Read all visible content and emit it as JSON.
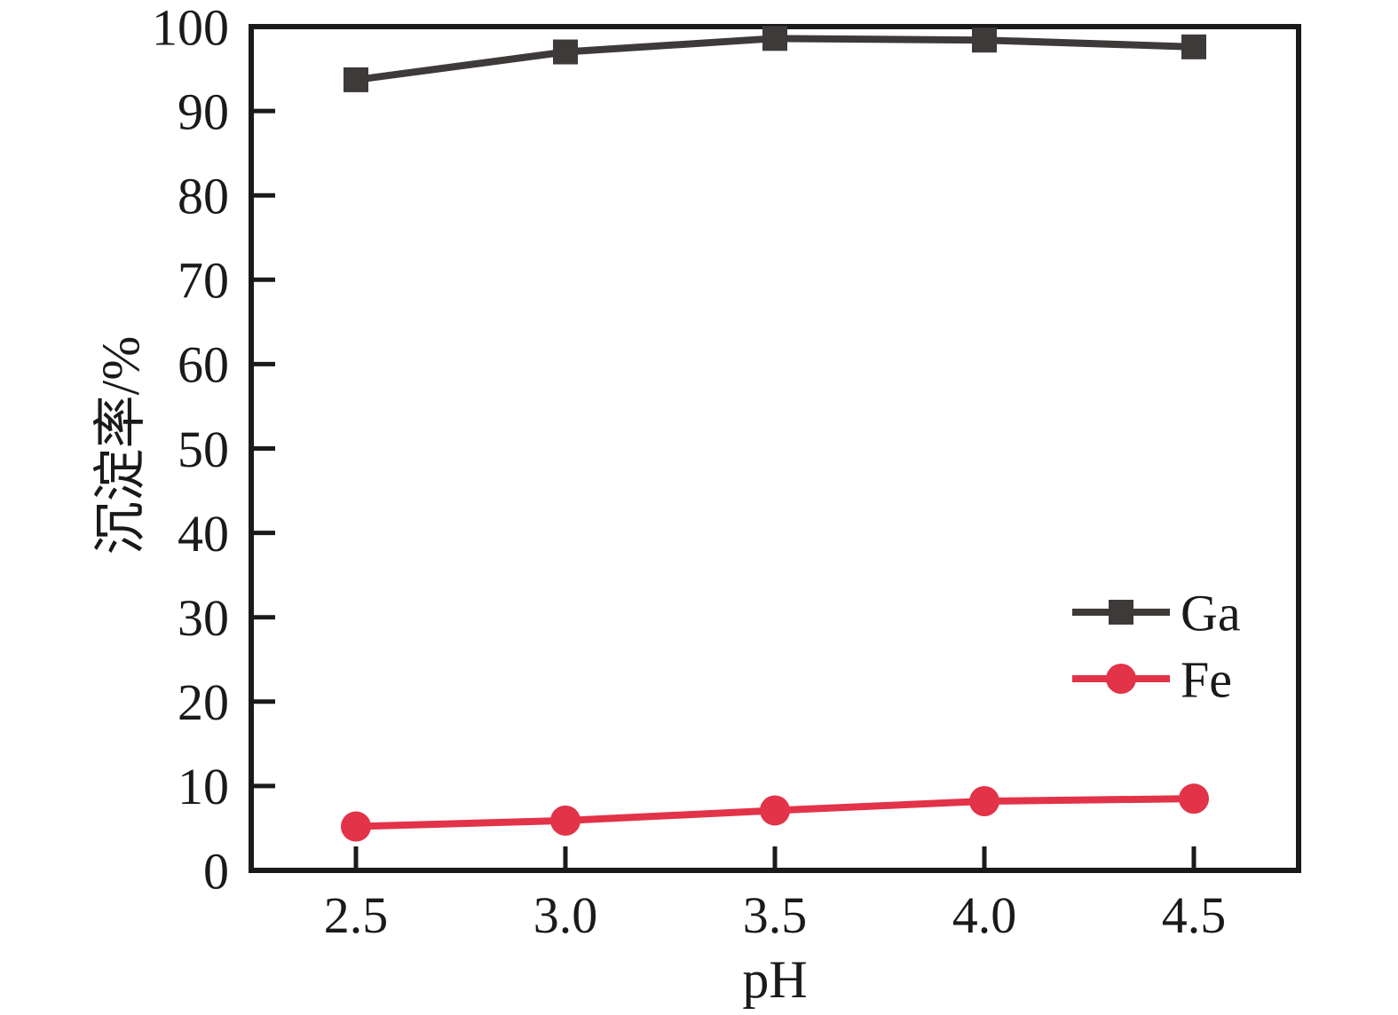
{
  "figure": {
    "background_color": "#ffffff",
    "text_color": "#1a1a1a"
  },
  "chart_data": {
    "type": "line",
    "x": [
      2.5,
      3.0,
      3.5,
      4.0,
      4.5
    ],
    "x_tick_labels": [
      "2.5",
      "3.0",
      "3.5",
      "4.0",
      "4.5"
    ],
    "series": [
      {
        "name": "Ga",
        "marker": "square",
        "color": "#3e3a3a",
        "values": [
          93.7,
          97.0,
          98.6,
          98.4,
          97.6
        ]
      },
      {
        "name": "Fe",
        "marker": "circle",
        "color": "#e23349",
        "values": [
          5.2,
          5.9,
          7.1,
          8.2,
          8.5
        ]
      }
    ],
    "xlabel": "pH",
    "ylabel": "沉淀率/%",
    "xlim": [
      2.25,
      4.75
    ],
    "ylim": [
      0,
      100
    ],
    "yticks": [
      0,
      10,
      20,
      30,
      40,
      50,
      60,
      70,
      80,
      90,
      100
    ],
    "y_tick_labels": [
      "0",
      "10",
      "20",
      "30",
      "40",
      "50",
      "60",
      "70",
      "80",
      "90",
      "100"
    ],
    "grid": false,
    "legend_position": "right-middle",
    "axis_color": "#1a1a1a"
  }
}
